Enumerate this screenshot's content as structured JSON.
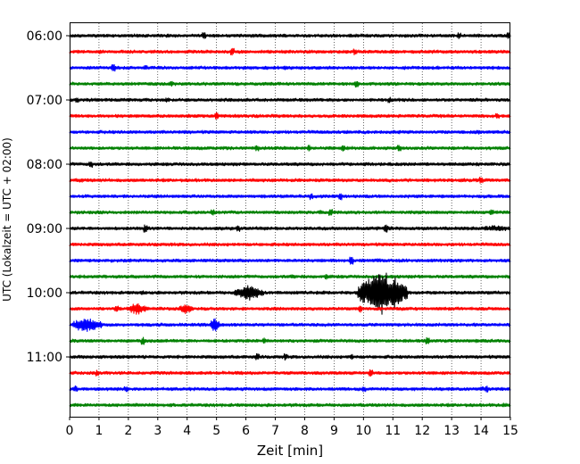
{
  "chart_data": {
    "type": "line",
    "subtype": "helicorder-seismogram",
    "xlabel": "Zeit  [min]",
    "ylabel": "UTC (Lokalzeit = UTC + 02:00)",
    "xlim": [
      0,
      15
    ],
    "x_ticks": [
      0,
      1,
      2,
      3,
      4,
      5,
      6,
      7,
      8,
      9,
      10,
      11,
      12,
      13,
      14,
      15
    ],
    "grid": "vertical dotted",
    "row_interval_min": 15,
    "row_colors": [
      "#000000",
      "#ff0000",
      "#0000ff",
      "#008000"
    ],
    "rows": [
      "06:00",
      "06:15",
      "06:30",
      "06:45",
      "07:00",
      "07:15",
      "07:30",
      "07:45",
      "08:00",
      "08:15",
      "08:30",
      "08:45",
      "09:00",
      "09:15",
      "09:30",
      "09:45",
      "10:00",
      "10:15",
      "10:30",
      "10:45",
      "11:00",
      "11:15",
      "11:30",
      "11:45"
    ],
    "y_tick_labels": [
      "06:00",
      "07:00",
      "08:00",
      "09:00",
      "10:00",
      "11:00"
    ],
    "events": [
      {
        "row": 16,
        "start_min": 5.6,
        "end_min": 6.6,
        "amplitude": 0.55
      },
      {
        "row": 16,
        "start_min": 9.8,
        "end_min": 11.5,
        "amplitude": 1.6
      },
      {
        "row": 17,
        "start_min": 2.0,
        "end_min": 2.6,
        "amplitude": 0.45
      },
      {
        "row": 17,
        "start_min": 3.7,
        "end_min": 4.2,
        "amplitude": 0.4
      },
      {
        "row": 17,
        "start_min": 9.8,
        "end_min": 10.0,
        "amplitude": 0.35
      },
      {
        "row": 18,
        "start_min": 0.1,
        "end_min": 1.1,
        "amplitude": 0.55
      },
      {
        "row": 18,
        "start_min": 4.8,
        "end_min": 5.1,
        "amplitude": 0.7
      },
      {
        "row": 12,
        "start_min": 14.0,
        "end_min": 15.0,
        "amplitude": 0.25
      }
    ]
  }
}
